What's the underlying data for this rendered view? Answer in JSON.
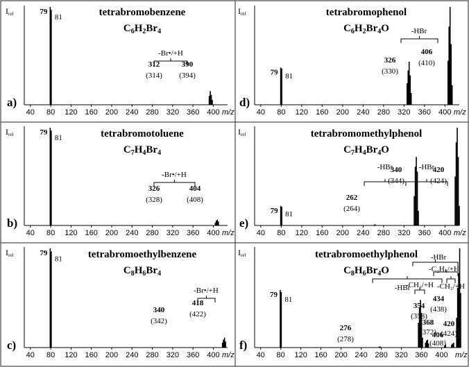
{
  "chart_data": [
    {
      "id": "a",
      "panel_label": "a)",
      "type": "bar",
      "title": "tetrabromobenzene",
      "formula_main": "C",
      "formula_parts": [
        "C",
        "6",
        "H",
        "2",
        "Br",
        "4",
        ""
      ],
      "ylabel_main": "I",
      "ylabel_sub": "rel",
      "xlabel": "m/z",
      "x_ticks": [
        "40",
        "80",
        "120",
        "160",
        "200",
        "240",
        "280",
        "320",
        "360",
        "400"
      ],
      "xlim": [
        28,
        428
      ],
      "peaks": [
        {
          "x": 79,
          "y": 1.0,
          "label": "79",
          "bold": true
        },
        {
          "x": 81,
          "y": 0.97,
          "label": "81",
          "bold": false
        },
        {
          "x": 392,
          "y": 0.09
        },
        {
          "x": 394,
          "y": 0.14
        },
        {
          "x": 396,
          "y": 0.1
        },
        {
          "x": 398,
          "y": 0.05
        }
      ],
      "ion_labels": [
        {
          "mz": "312",
          "alt": "(314)"
        },
        {
          "mz": "390",
          "alt": "(394)"
        }
      ],
      "bracket_labels": [
        "-Br•/+H"
      ]
    },
    {
      "id": "d",
      "panel_label": "d)",
      "type": "bar",
      "title": "tetrabromophenol",
      "formula_parts": [
        "C",
        "6",
        "H",
        "2",
        "Br",
        "4",
        "O"
      ],
      "ylabel_main": "I",
      "ylabel_sub": "rel",
      "xlabel": "m/z",
      "x_ticks": [
        "40",
        "80",
        "120",
        "160",
        "200",
        "240",
        "280",
        "320",
        "360",
        "400"
      ],
      "xlim": [
        28,
        428
      ],
      "peaks": [
        {
          "x": 79,
          "y": 0.38,
          "label": "79",
          "bold": true
        },
        {
          "x": 81,
          "y": 0.37,
          "label": "81",
          "bold": false
        },
        {
          "x": 326,
          "y": 0.22
        },
        {
          "x": 328,
          "y": 0.35
        },
        {
          "x": 330,
          "y": 0.44
        },
        {
          "x": 332,
          "y": 0.3
        },
        {
          "x": 334,
          "y": 0.12
        },
        {
          "x": 406,
          "y": 0.45
        },
        {
          "x": 408,
          "y": 0.8
        },
        {
          "x": 410,
          "y": 1.0
        },
        {
          "x": 412,
          "y": 0.62
        },
        {
          "x": 414,
          "y": 0.2
        }
      ],
      "ion_labels": [
        {
          "mz": "326",
          "alt": "(330)"
        },
        {
          "mz": "406",
          "alt": "(410)"
        }
      ],
      "bracket_labels": [
        "-HBr"
      ]
    },
    {
      "id": "b",
      "panel_label": "b)",
      "type": "bar",
      "title": "tetrabromotoluene",
      "formula_parts": [
        "C",
        "7",
        "H",
        "4",
        "Br",
        "4",
        ""
      ],
      "ylabel_main": "I",
      "ylabel_sub": "rel",
      "xlabel": "m/z",
      "x_ticks": [
        "40",
        "80",
        "120",
        "160",
        "200",
        "240",
        "280",
        "320",
        "360",
        "400"
      ],
      "xlim": [
        28,
        428
      ],
      "peaks": [
        {
          "x": 79,
          "y": 1.0,
          "label": "79",
          "bold": true
        },
        {
          "x": 81,
          "y": 0.97,
          "label": "81",
          "bold": false
        },
        {
          "x": 404,
          "y": 0.03
        },
        {
          "x": 406,
          "y": 0.05
        },
        {
          "x": 408,
          "y": 0.06
        },
        {
          "x": 410,
          "y": 0.04
        }
      ],
      "ion_labels": [
        {
          "mz": "326",
          "alt": "(328)"
        },
        {
          "mz": "404",
          "alt": "(408)"
        }
      ],
      "bracket_labels": [
        "-Br•/+H"
      ]
    },
    {
      "id": "e",
      "panel_label": "e)",
      "type": "bar",
      "title": "tetrabromomethylphenol",
      "formula_parts": [
        "C",
        "7",
        "H",
        "4",
        "Br",
        "4",
        "O"
      ],
      "ylabel_main": "I",
      "ylabel_sub": "rel",
      "xlabel": "m/z",
      "x_ticks": [
        "40",
        "80",
        "120",
        "160",
        "200",
        "240",
        "280",
        "320",
        "360",
        "400"
      ],
      "xlim": [
        28,
        428
      ],
      "peaks": [
        {
          "x": 79,
          "y": 0.2,
          "label": "79",
          "bold": true
        },
        {
          "x": 81,
          "y": 0.19,
          "label": "81",
          "bold": false
        },
        {
          "x": 262,
          "y": 0.01
        },
        {
          "x": 264,
          "y": 0.01
        },
        {
          "x": 340,
          "y": 0.3
        },
        {
          "x": 342,
          "y": 0.6
        },
        {
          "x": 344,
          "y": 0.7
        },
        {
          "x": 346,
          "y": 0.55
        },
        {
          "x": 348,
          "y": 0.15
        },
        {
          "x": 420,
          "y": 0.5
        },
        {
          "x": 422,
          "y": 0.85
        },
        {
          "x": 424,
          "y": 1.0
        },
        {
          "x": 426,
          "y": 0.7
        },
        {
          "x": 428,
          "y": 0.2
        }
      ],
      "ion_labels": [
        {
          "mz": "262",
          "alt": "(264)"
        },
        {
          "mz": "340",
          "alt": "(344)"
        },
        {
          "mz": "420",
          "alt": "(424)"
        }
      ],
      "bracket_labels": [
        "-HBr",
        "-HBr"
      ]
    },
    {
      "id": "c",
      "panel_label": "c)",
      "type": "bar",
      "title": "tetrabromoethylbenzene",
      "formula_parts": [
        "C",
        "8",
        "H",
        "6",
        "Br",
        "4",
        ""
      ],
      "ylabel_main": "I",
      "ylabel_sub": "rel",
      "xlabel": "m/z",
      "x_ticks": [
        "40",
        "80",
        "120",
        "160",
        "200",
        "240",
        "280",
        "320",
        "360",
        "400"
      ],
      "xlim": [
        28,
        428
      ],
      "peaks": [
        {
          "x": 79,
          "y": 1.0,
          "label": "79",
          "bold": true
        },
        {
          "x": 81,
          "y": 0.97,
          "label": "81",
          "bold": false
        },
        {
          "x": 418,
          "y": 0.05
        },
        {
          "x": 420,
          "y": 0.08
        },
        {
          "x": 422,
          "y": 0.1
        },
        {
          "x": 424,
          "y": 0.06
        }
      ],
      "ion_labels": [
        {
          "mz": "340",
          "alt": "(342)"
        },
        {
          "mz": "418",
          "alt": "(422)"
        }
      ],
      "bracket_labels": [
        "-Br•/+H"
      ]
    },
    {
      "id": "f",
      "panel_label": "f)",
      "type": "bar",
      "title": "tetrabromoethylphenol",
      "formula_parts": [
        "C",
        "8",
        "H",
        "6",
        "Br",
        "4",
        "O"
      ],
      "ylabel_main": "I",
      "ylabel_sub": "rel",
      "xlabel": "m/z",
      "x_ticks": [
        "40",
        "80",
        "120",
        "160",
        "200",
        "240",
        "280",
        "320",
        "360",
        "400"
      ],
      "xlim": [
        28,
        438
      ],
      "peaks": [
        {
          "x": 79,
          "y": 0.58,
          "label": "79",
          "bold": true
        },
        {
          "x": 81,
          "y": 0.56,
          "label": "81",
          "bold": false
        },
        {
          "x": 276,
          "y": 0.01
        },
        {
          "x": 278,
          "y": 0.01
        },
        {
          "x": 354,
          "y": 0.25
        },
        {
          "x": 356,
          "y": 0.4
        },
        {
          "x": 358,
          "y": 0.48
        },
        {
          "x": 360,
          "y": 0.35
        },
        {
          "x": 362,
          "y": 0.1
        },
        {
          "x": 368,
          "y": 0.05
        },
        {
          "x": 370,
          "y": 0.07
        },
        {
          "x": 372,
          "y": 0.08
        },
        {
          "x": 374,
          "y": 0.04
        },
        {
          "x": 406,
          "y": 0.02
        },
        {
          "x": 408,
          "y": 0.03
        },
        {
          "x": 420,
          "y": 0.03
        },
        {
          "x": 422,
          "y": 0.04
        },
        {
          "x": 424,
          "y": 0.05
        },
        {
          "x": 430,
          "y": 0.3
        },
        {
          "x": 432,
          "y": 0.6
        },
        {
          "x": 434,
          "y": 0.75
        },
        {
          "x": 436,
          "y": 1.0
        },
        {
          "x": 438,
          "y": 0.55
        }
      ],
      "ion_labels": [
        {
          "mz": "276",
          "alt": "(278)"
        },
        {
          "mz": "354",
          "alt": "(358)"
        },
        {
          "mz": "368",
          "alt": "(372)"
        },
        {
          "mz": "406",
          "alt": "(408)"
        },
        {
          "mz": "420",
          "alt": "(424)"
        },
        {
          "mz": "434",
          "alt": "(438)"
        }
      ],
      "bracket_labels": [
        "-HBr",
        "-HBr",
        "-C₂H₄/+H",
        "-CH₂/+H",
        "-CH₂/+H"
      ]
    }
  ]
}
